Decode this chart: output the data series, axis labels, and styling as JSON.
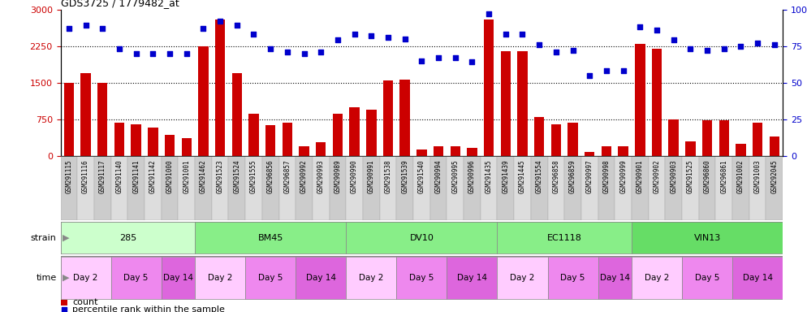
{
  "title": "GDS3725 / 1779482_at",
  "samples": [
    "GSM291115",
    "GSM291116",
    "GSM291117",
    "GSM291140",
    "GSM291141",
    "GSM291142",
    "GSM291000",
    "GSM291001",
    "GSM291462",
    "GSM291523",
    "GSM291524",
    "GSM291555",
    "GSM296856",
    "GSM296857",
    "GSM290992",
    "GSM290993",
    "GSM290989",
    "GSM290990",
    "GSM290991",
    "GSM291538",
    "GSM291539",
    "GSM291540",
    "GSM290994",
    "GSM290995",
    "GSM290996",
    "GSM291435",
    "GSM291439",
    "GSM291445",
    "GSM291554",
    "GSM296858",
    "GSM296859",
    "GSM290997",
    "GSM290998",
    "GSM290999",
    "GSM290901",
    "GSM290902",
    "GSM290903",
    "GSM291525",
    "GSM296860",
    "GSM296861",
    "GSM291002",
    "GSM291003",
    "GSM292045"
  ],
  "counts": [
    1500,
    1700,
    1500,
    680,
    640,
    590,
    430,
    360,
    2250,
    2800,
    1700,
    870,
    630,
    680,
    200,
    280,
    870,
    1000,
    950,
    1550,
    1570,
    130,
    200,
    200,
    160,
    2800,
    2150,
    2150,
    800,
    650,
    680,
    80,
    200,
    200,
    2300,
    2200,
    750,
    300,
    730,
    730,
    250,
    680,
    400
  ],
  "percentiles": [
    87,
    89,
    87,
    73,
    70,
    70,
    70,
    70,
    87,
    92,
    89,
    83,
    73,
    71,
    70,
    71,
    79,
    83,
    82,
    81,
    80,
    65,
    67,
    67,
    64,
    97,
    83,
    83,
    76,
    71,
    72,
    55,
    58,
    58,
    88,
    86,
    79,
    73,
    72,
    73,
    75,
    77,
    76
  ],
  "strains": [
    {
      "label": "285",
      "start": 0,
      "end": 8,
      "color": "#ccffcc"
    },
    {
      "label": "BM45",
      "start": 8,
      "end": 17,
      "color": "#88ee88"
    },
    {
      "label": "DV10",
      "start": 17,
      "end": 26,
      "color": "#88ee88"
    },
    {
      "label": "EC1118",
      "start": 26,
      "end": 34,
      "color": "#88ee88"
    },
    {
      "label": "VIN13",
      "start": 34,
      "end": 43,
      "color": "#66dd66"
    }
  ],
  "times": [
    {
      "label": "Day 2",
      "start": 0,
      "end": 3,
      "color": "#ffccff"
    },
    {
      "label": "Day 5",
      "start": 3,
      "end": 6,
      "color": "#ee88ee"
    },
    {
      "label": "Day 14",
      "start": 6,
      "end": 8,
      "color": "#dd66dd"
    },
    {
      "label": "Day 2",
      "start": 8,
      "end": 11,
      "color": "#ffccff"
    },
    {
      "label": "Day 5",
      "start": 11,
      "end": 14,
      "color": "#ee88ee"
    },
    {
      "label": "Day 14",
      "start": 14,
      "end": 17,
      "color": "#dd66dd"
    },
    {
      "label": "Day 2",
      "start": 17,
      "end": 20,
      "color": "#ffccff"
    },
    {
      "label": "Day 5",
      "start": 20,
      "end": 23,
      "color": "#ee88ee"
    },
    {
      "label": "Day 14",
      "start": 23,
      "end": 26,
      "color": "#dd66dd"
    },
    {
      "label": "Day 2",
      "start": 26,
      "end": 29,
      "color": "#ffccff"
    },
    {
      "label": "Day 5",
      "start": 29,
      "end": 32,
      "color": "#ee88ee"
    },
    {
      "label": "Day 14",
      "start": 32,
      "end": 34,
      "color": "#dd66dd"
    },
    {
      "label": "Day 2",
      "start": 34,
      "end": 37,
      "color": "#ffccff"
    },
    {
      "label": "Day 5",
      "start": 37,
      "end": 40,
      "color": "#ee88ee"
    },
    {
      "label": "Day 14",
      "start": 40,
      "end": 43,
      "color": "#dd66dd"
    }
  ],
  "bar_color": "#cc0000",
  "dot_color": "#0000cc",
  "left_ylim": [
    0,
    3000
  ],
  "right_ylim": [
    0,
    100
  ],
  "left_yticks": [
    0,
    750,
    1500,
    2250,
    3000
  ],
  "right_yticks": [
    0,
    25,
    50,
    75,
    100
  ],
  "bg_color": "#ffffff",
  "xtick_bg_odd": "#dddddd",
  "xtick_bg_even": "#cccccc"
}
